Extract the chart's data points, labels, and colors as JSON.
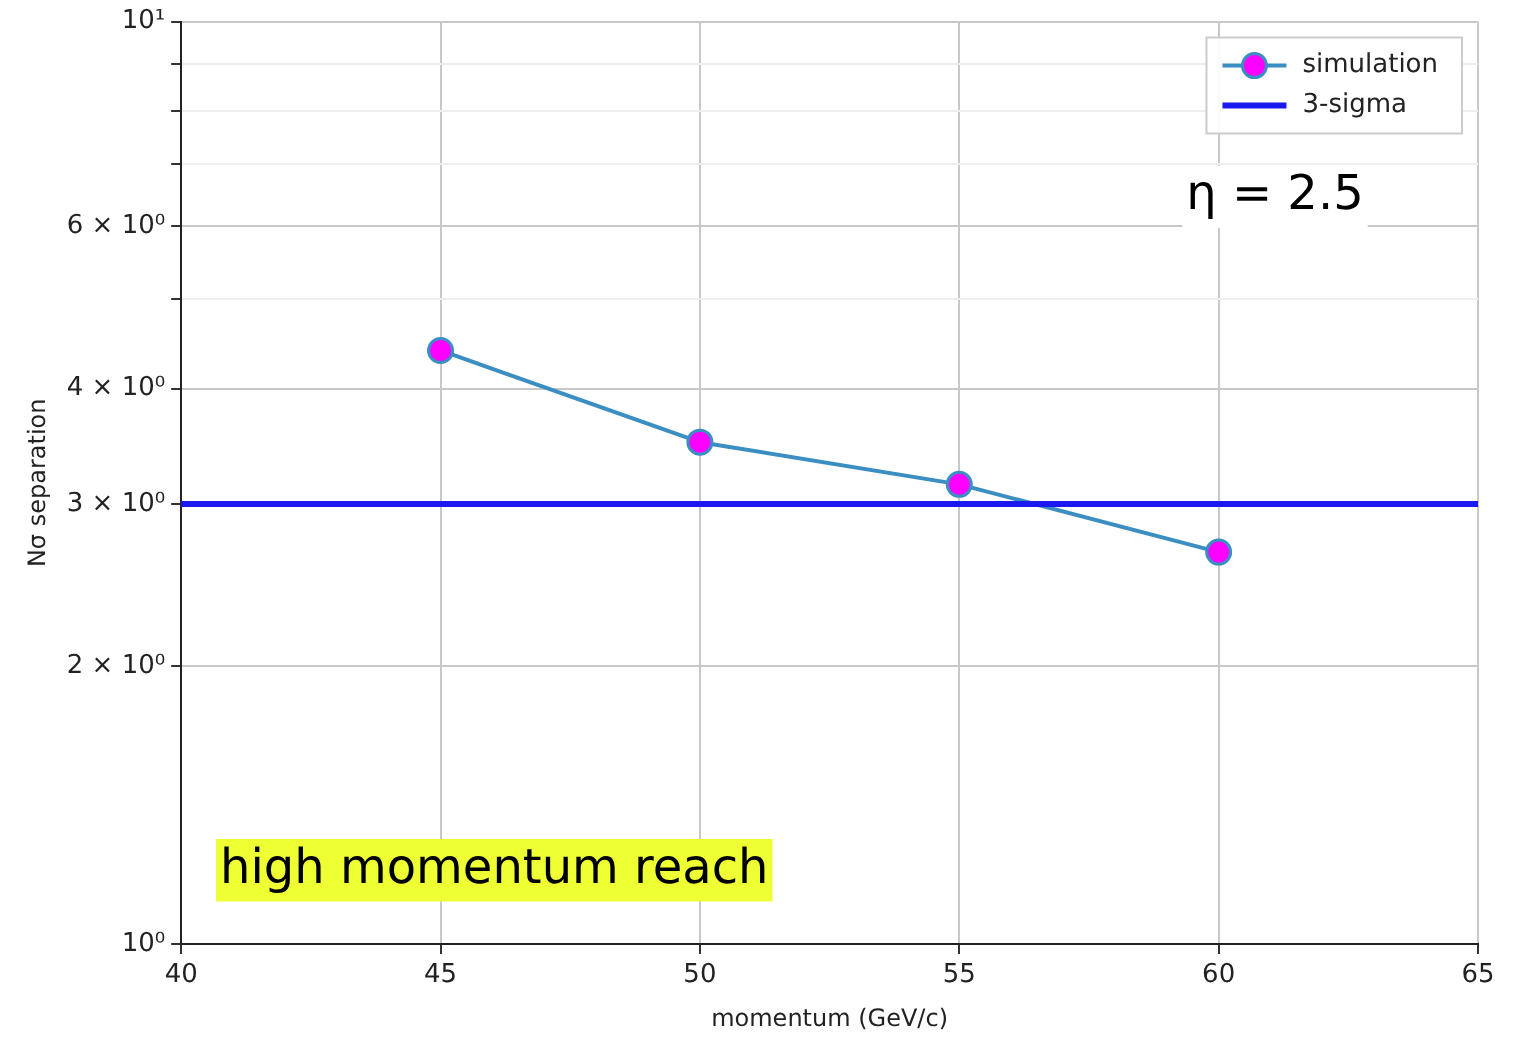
{
  "chart_data": {
    "type": "line",
    "xlabel": "momentum (GeV/c)",
    "ylabel": "Nσ separation",
    "x": [
      45,
      50,
      55,
      60
    ],
    "series": [
      {
        "name": "simulation",
        "color": "#3b8ec2",
        "values": [
          4.4,
          3.5,
          3.15,
          2.66
        ]
      }
    ],
    "marker": "circle",
    "line_style": "solid",
    "log": "y",
    "grid": true,
    "legend": "top right",
    "xlim": [
      40,
      65
    ],
    "xticks": [
      40,
      45,
      50,
      55,
      60,
      65
    ],
    "ylim": [
      1,
      10
    ],
    "yticks": [
      {
        "value": 1,
        "label": "10⁰"
      },
      {
        "value": 2,
        "label": "2 × 10⁰"
      },
      {
        "value": 3,
        "label": "3 × 10⁰"
      },
      {
        "value": 4,
        "label": "4 × 10⁰"
      },
      {
        "value": 5,
        "label": null
      },
      {
        "value": 6,
        "label": "6 × 10⁰"
      },
      {
        "value": 7,
        "label": null
      },
      {
        "value": 8,
        "label": null
      },
      {
        "value": 9,
        "label": null
      },
      {
        "value": 10,
        "label": "10¹"
      }
    ],
    "ref_lines": [
      {
        "axis": "y",
        "value": 3,
        "label": "3-sigma",
        "color": "#1a1aee"
      }
    ],
    "annotations": [
      "η = 2.5",
      "high momentum reach"
    ]
  }
}
